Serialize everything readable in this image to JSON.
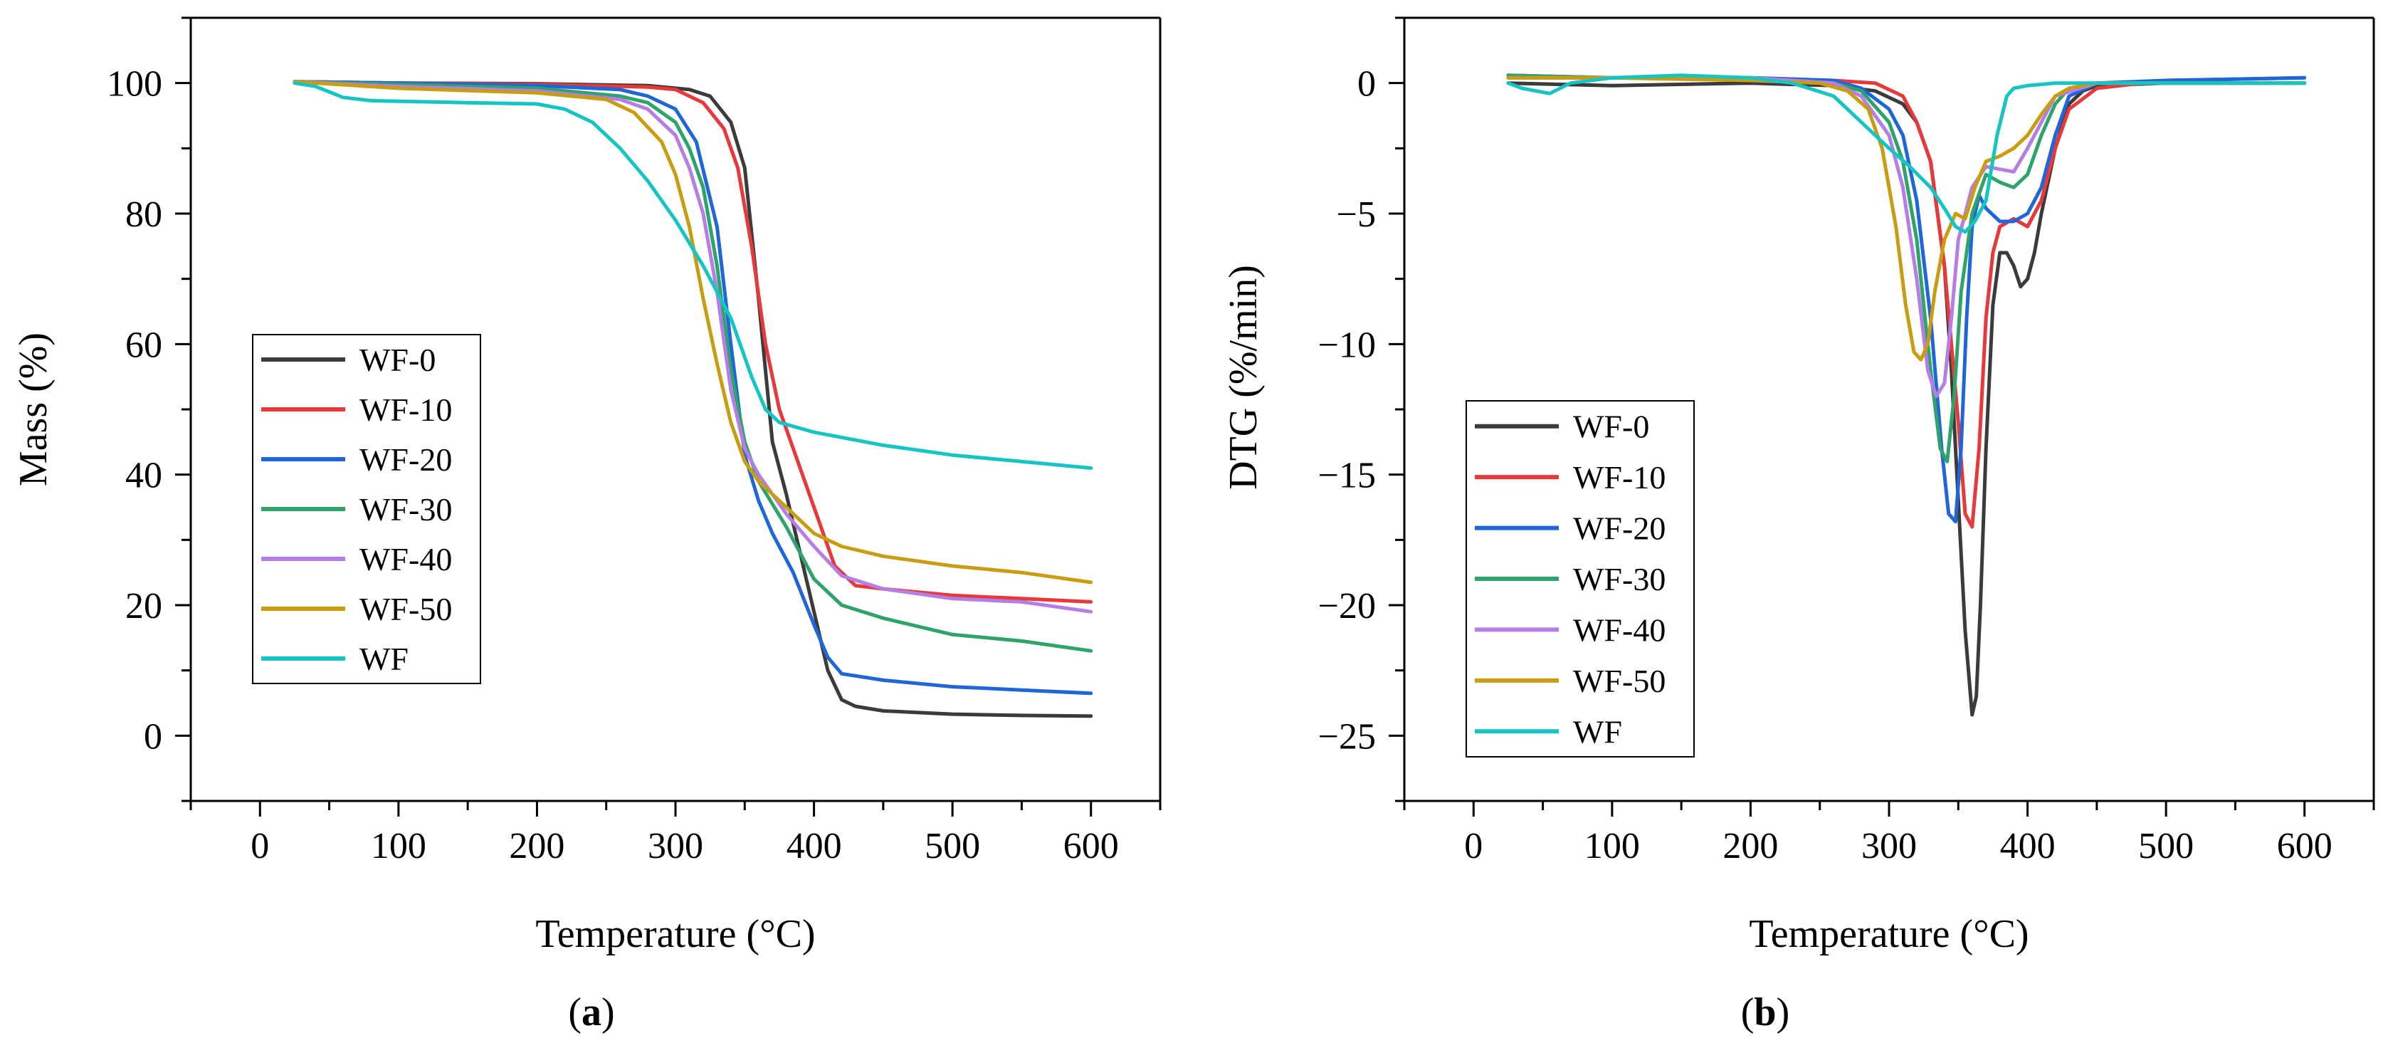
{
  "series_colors": {
    "WF-0": "#3b3b3b",
    "WF-10": "#e8393a",
    "WF-20": "#1f66d9",
    "WF-30": "#2ea36a",
    "WF-40": "#b57ee6",
    "WF-50": "#c99d12",
    "WF": "#17c4c4"
  },
  "chart_data": [
    {
      "type": "line",
      "panel_label": "a",
      "title": "",
      "xlabel": "Temperature (°C)",
      "ylabel": "Mass (%)",
      "xlim": [
        -50,
        650
      ],
      "ylim": [
        -10,
        110
      ],
      "xticks": [
        0,
        100,
        200,
        300,
        400,
        500,
        600
      ],
      "yticks": [
        0,
        20,
        40,
        60,
        80,
        100
      ],
      "xtick_labels": [
        "0",
        "100",
        "200",
        "300",
        "400",
        "500",
        "600"
      ],
      "ytick_labels": [
        "0",
        "20",
        "40",
        "60",
        "80",
        "100"
      ],
      "legend_position": "middle-left",
      "grid": false,
      "series": [
        {
          "name": "WF-0",
          "x": [
            25,
            100,
            200,
            280,
            310,
            325,
            340,
            350,
            360,
            370,
            380,
            390,
            400,
            410,
            420,
            430,
            450,
            500,
            550,
            600
          ],
          "y": [
            100.2,
            100.0,
            99.9,
            99.6,
            99,
            98,
            94,
            87,
            67,
            45,
            37,
            28,
            19,
            10,
            5.5,
            4.5,
            3.8,
            3.3,
            3.1,
            3.0
          ]
        },
        {
          "name": "WF-10",
          "x": [
            25,
            100,
            200,
            280,
            300,
            320,
            335,
            345,
            355,
            365,
            375,
            385,
            400,
            415,
            430,
            450,
            500,
            550,
            600
          ],
          "y": [
            100.2,
            100.0,
            99.8,
            99.4,
            99,
            97,
            93,
            87,
            75,
            60,
            50,
            44,
            35,
            26,
            23,
            22.5,
            21.5,
            21,
            20.5
          ]
        },
        {
          "name": "WF-20",
          "x": [
            25,
            100,
            200,
            260,
            280,
            300,
            315,
            330,
            340,
            350,
            360,
            370,
            385,
            400,
            410,
            420,
            450,
            500,
            550,
            600
          ],
          "y": [
            100.2,
            100.0,
            99.6,
            99,
            98,
            96,
            91,
            78,
            60,
            43,
            36,
            31,
            25,
            17,
            12,
            9.5,
            8.5,
            7.5,
            7,
            6.5
          ]
        },
        {
          "name": "WF-30",
          "x": [
            25,
            100,
            200,
            260,
            280,
            300,
            310,
            320,
            330,
            340,
            350,
            360,
            380,
            400,
            420,
            450,
            500,
            550,
            600
          ],
          "y": [
            100.2,
            99.8,
            99.2,
            98,
            97,
            94,
            90,
            84,
            72,
            56,
            45,
            39,
            32,
            24,
            20,
            18,
            15.5,
            14.5,
            13
          ]
        },
        {
          "name": "WF-40",
          "x": [
            25,
            100,
            200,
            260,
            280,
            300,
            310,
            320,
            330,
            340,
            350,
            360,
            380,
            400,
            420,
            450,
            500,
            550,
            600
          ],
          "y": [
            100.2,
            99.5,
            98.8,
            97.5,
            96,
            92,
            87,
            80,
            68,
            53,
            44,
            40,
            34,
            29,
            24.5,
            22.5,
            21,
            20.5,
            19
          ]
        },
        {
          "name": "WF-50",
          "x": [
            25,
            100,
            200,
            250,
            270,
            290,
            300,
            310,
            320,
            330,
            340,
            350,
            360,
            380,
            400,
            420,
            450,
            500,
            550,
            600
          ],
          "y": [
            100.2,
            99.2,
            98.5,
            97.5,
            95.5,
            91,
            86,
            78,
            67,
            57,
            48,
            42,
            39,
            35,
            31,
            29,
            27.5,
            26,
            25,
            23.5
          ]
        },
        {
          "name": "WF",
          "x": [
            25,
            40,
            60,
            80,
            100,
            150,
            200,
            220,
            240,
            260,
            280,
            300,
            320,
            340,
            355,
            365,
            375,
            400,
            450,
            500,
            550,
            600
          ],
          "y": [
            100,
            99.5,
            97.8,
            97.3,
            97.2,
            97,
            96.8,
            96,
            94,
            90,
            85,
            79,
            72,
            64,
            55,
            50,
            48,
            46.5,
            44.5,
            43,
            42,
            41
          ]
        }
      ]
    },
    {
      "type": "line",
      "panel_label": "b",
      "title": "",
      "xlabel": "Temperature (°C)",
      "ylabel": "DTG (%/min)",
      "xlim": [
        -50,
        650
      ],
      "ylim": [
        -27.5,
        2.5
      ],
      "xticks": [
        0,
        100,
        200,
        300,
        400,
        500,
        600
      ],
      "yticks": [
        0,
        -5,
        -10,
        -15,
        -20,
        -25
      ],
      "xtick_labels": [
        "0",
        "100",
        "200",
        "300",
        "400",
        "500",
        "600"
      ],
      "ytick_labels": [
        "0",
        "−5",
        "−10",
        "−15",
        "−20",
        "−25"
      ],
      "legend_position": "bottom-left",
      "grid": false,
      "series": [
        {
          "name": "WF-0",
          "x": [
            25,
            100,
            200,
            260,
            290,
            310,
            320,
            330,
            340,
            345,
            350,
            355,
            360,
            363,
            366,
            370,
            375,
            380,
            385,
            390,
            395,
            400,
            405,
            410,
            420,
            430,
            440,
            450,
            500,
            600
          ],
          "y": [
            0,
            -0.1,
            0,
            -0.1,
            -0.3,
            -0.8,
            -1.5,
            -3,
            -7,
            -11,
            -16,
            -21,
            -24.2,
            -23.5,
            -20,
            -14,
            -8.5,
            -6.5,
            -6.5,
            -7,
            -7.8,
            -7.5,
            -6.5,
            -5,
            -2.5,
            -0.8,
            -0.3,
            -0.1,
            0,
            0
          ]
        },
        {
          "name": "WF-10",
          "x": [
            25,
            100,
            200,
            260,
            290,
            310,
            320,
            330,
            340,
            350,
            355,
            360,
            365,
            370,
            375,
            380,
            390,
            400,
            410,
            420,
            430,
            450,
            500,
            600
          ],
          "y": [
            0.2,
            0.2,
            0.2,
            0.1,
            0,
            -0.5,
            -1.5,
            -3,
            -7,
            -13,
            -16.5,
            -17,
            -14,
            -9,
            -6.5,
            -5.5,
            -5.2,
            -5.5,
            -4.5,
            -2.5,
            -1,
            -0.2,
            0.1,
            0.2
          ]
        },
        {
          "name": "WF-20",
          "x": [
            25,
            100,
            200,
            260,
            280,
            300,
            310,
            320,
            330,
            338,
            343,
            348,
            352,
            356,
            360,
            365,
            370,
            380,
            390,
            400,
            410,
            420,
            430,
            450,
            500,
            600
          ],
          "y": [
            0.3,
            0.2,
            0.2,
            0.1,
            -0.2,
            -1,
            -2,
            -4.5,
            -9,
            -14,
            -16.5,
            -16.8,
            -14,
            -9,
            -5.5,
            -4.3,
            -4.8,
            -5.3,
            -5.3,
            -5,
            -4,
            -2,
            -0.5,
            0,
            0.1,
            0.2
          ]
        },
        {
          "name": "WF-30",
          "x": [
            25,
            100,
            200,
            260,
            280,
            300,
            310,
            320,
            330,
            337,
            342,
            347,
            352,
            360,
            370,
            380,
            390,
            400,
            410,
            420,
            430,
            450,
            500,
            600
          ],
          "y": [
            0.3,
            0.2,
            0.2,
            0,
            -0.3,
            -1.5,
            -3,
            -6,
            -11,
            -14,
            -14.5,
            -12,
            -8,
            -5,
            -3.5,
            -3.8,
            -4,
            -3.5,
            -2,
            -0.8,
            -0.2,
            0,
            0,
            0
          ]
        },
        {
          "name": "WF-40",
          "x": [
            25,
            100,
            200,
            260,
            280,
            300,
            310,
            320,
            328,
            334,
            340,
            345,
            350,
            360,
            370,
            380,
            390,
            400,
            410,
            420,
            450,
            500,
            600
          ],
          "y": [
            0.2,
            0.2,
            0.2,
            0,
            -0.5,
            -2,
            -4,
            -7.5,
            -11,
            -12,
            -11.5,
            -9,
            -6,
            -4,
            -3.2,
            -3.3,
            -3.4,
            -2.5,
            -1.5,
            -0.5,
            0,
            0,
            0
          ]
        },
        {
          "name": "WF-50",
          "x": [
            25,
            100,
            200,
            250,
            270,
            285,
            295,
            305,
            312,
            318,
            323,
            328,
            333,
            340,
            348,
            355,
            362,
            370,
            380,
            390,
            400,
            410,
            420,
            430,
            450,
            500,
            600
          ],
          "y": [
            0.2,
            0.2,
            0.1,
            0,
            -0.3,
            -1,
            -2.5,
            -5.5,
            -8.5,
            -10.3,
            -10.6,
            -10,
            -8,
            -6,
            -5,
            -5.2,
            -4,
            -3,
            -2.8,
            -2.5,
            -2,
            -1.2,
            -0.5,
            -0.2,
            0,
            0,
            0
          ]
        },
        {
          "name": "WF",
          "x": [
            25,
            35,
            45,
            55,
            70,
            100,
            150,
            200,
            230,
            260,
            280,
            300,
            315,
            330,
            340,
            348,
            355,
            362,
            370,
            378,
            385,
            390,
            400,
            420,
            450,
            500,
            600
          ],
          "y": [
            0,
            -0.2,
            -0.3,
            -0.4,
            0,
            0.2,
            0.3,
            0.2,
            0,
            -0.5,
            -1.5,
            -2.5,
            -3.2,
            -4,
            -4.8,
            -5.5,
            -5.7,
            -5.3,
            -4.5,
            -2,
            -0.5,
            -0.2,
            -0.1,
            0,
            0,
            0,
            0
          ]
        }
      ]
    }
  ]
}
